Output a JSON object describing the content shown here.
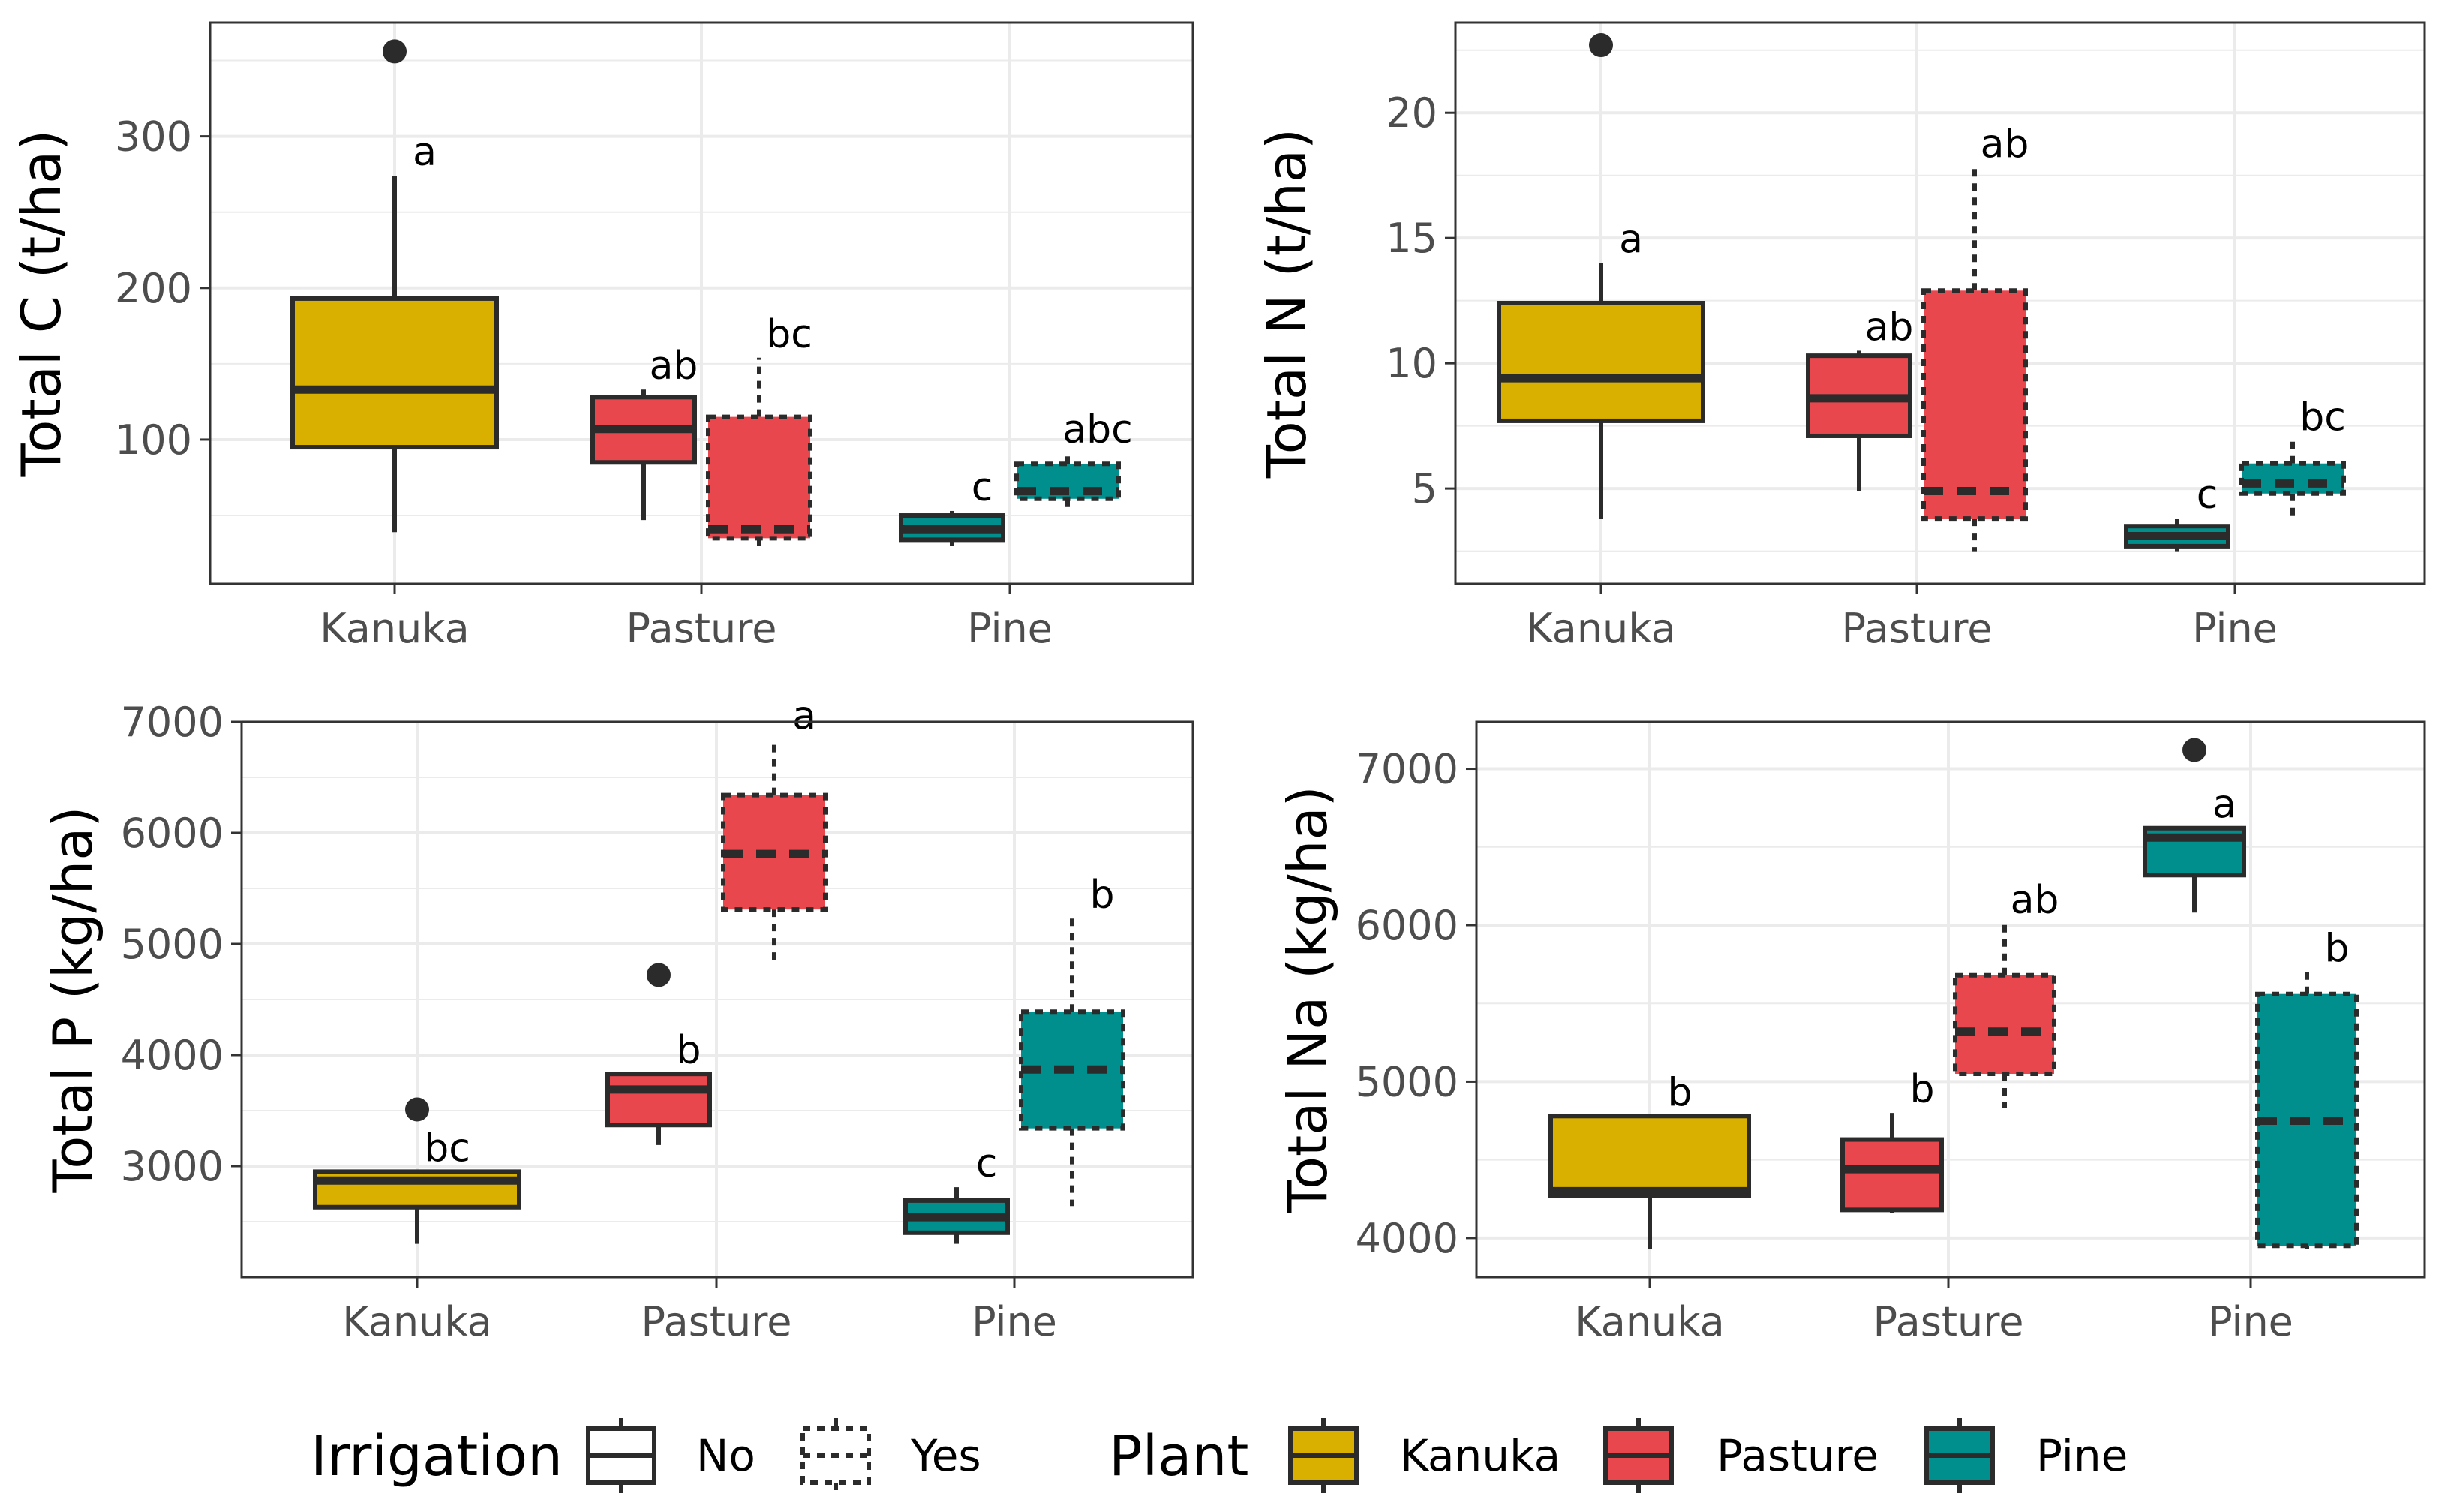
{
  "colors": {
    "Kanuka": "#D9AF00",
    "Pasture": "#E9474E",
    "Pine": "#008F8C",
    "outline": "#2b2b2b",
    "grid": "#ebebeb"
  },
  "chart_data": [
    {
      "type": "boxplot",
      "ylabel": "Total C (t/ha)",
      "categories": [
        "Kanuka",
        "Pasture",
        "Pine"
      ],
      "ylim": [
        5,
        375
      ],
      "yticks": [
        100,
        200,
        300
      ],
      "boxes": [
        {
          "plant": "Kanuka",
          "irrigation": "No",
          "min": 39,
          "q1": 95,
          "median": 133,
          "q3": 193,
          "max": 274,
          "outliers": [
            356
          ],
          "label": "a"
        },
        {
          "plant": "Pasture",
          "irrigation": "No",
          "min": 47,
          "q1": 85,
          "median": 107,
          "q3": 128,
          "max": 133,
          "outliers": [],
          "label": "ab"
        },
        {
          "plant": "Pasture",
          "irrigation": "Yes",
          "min": 28,
          "q1": 35,
          "median": 41,
          "q3": 115,
          "max": 154,
          "outliers": [],
          "label": "bc"
        },
        {
          "plant": "Pine",
          "irrigation": "No",
          "min": 30,
          "q1": 34,
          "median": 41,
          "q3": 50,
          "max": 53,
          "outliers": [],
          "label": "c"
        },
        {
          "plant": "Pine",
          "irrigation": "Yes",
          "min": 52,
          "q1": 61,
          "median": 66,
          "q3": 84,
          "max": 91,
          "outliers": [],
          "label": "abc"
        }
      ]
    },
    {
      "type": "boxplot",
      "ylabel": "Total N (t/ha)",
      "categories": [
        "Kanuka",
        "Pasture",
        "Pine"
      ],
      "ylim": [
        1.2,
        23.6
      ],
      "yticks": [
        5,
        10,
        15,
        20
      ],
      "boxes": [
        {
          "plant": "Kanuka",
          "irrigation": "No",
          "min": 3.8,
          "q1": 7.7,
          "median": 9.4,
          "q3": 12.4,
          "max": 14.0,
          "outliers": [
            22.7
          ],
          "label": "a"
        },
        {
          "plant": "Pasture",
          "irrigation": "No",
          "min": 4.9,
          "q1": 7.1,
          "median": 8.6,
          "q3": 10.3,
          "max": 10.5,
          "outliers": [],
          "label": "ab"
        },
        {
          "plant": "Pasture",
          "irrigation": "Yes",
          "min": 2.5,
          "q1": 3.8,
          "median": 4.9,
          "q3": 12.9,
          "max": 17.8,
          "outliers": [],
          "label": "ab"
        },
        {
          "plant": "Pine",
          "irrigation": "No",
          "min": 2.5,
          "q1": 2.7,
          "median": 3.1,
          "q3": 3.5,
          "max": 3.8,
          "outliers": [],
          "label": "c"
        },
        {
          "plant": "Pine",
          "irrigation": "Yes",
          "min": 3.8,
          "q1": 4.8,
          "median": 5.2,
          "q3": 6.0,
          "max": 6.9,
          "outliers": [],
          "label": "bc"
        }
      ]
    },
    {
      "type": "boxplot",
      "ylabel": "Total P (kg/ha)",
      "categories": [
        "Kanuka",
        "Pasture",
        "Pine"
      ],
      "ylim": [
        2000,
        7000
      ],
      "yticks": [
        3000,
        4000,
        5000,
        6000,
        7000
      ],
      "boxes": [
        {
          "plant": "Kanuka",
          "irrigation": "No",
          "min": 2300,
          "q1": 2630,
          "median": 2870,
          "q3": 2950,
          "max": 2950,
          "outliers": [
            3510
          ],
          "label": "bc"
        },
        {
          "plant": "Pasture",
          "irrigation": "No",
          "min": 3190,
          "q1": 3370,
          "median": 3690,
          "q3": 3830,
          "max": 3830,
          "outliers": [
            4720
          ],
          "label": "b"
        },
        {
          "plant": "Pasture",
          "irrigation": "Yes",
          "min": 4800,
          "q1": 5310,
          "median": 5810,
          "q3": 6340,
          "max": 6840,
          "outliers": [],
          "label": "a"
        },
        {
          "plant": "Pine",
          "irrigation": "No",
          "min": 2300,
          "q1": 2400,
          "median": 2540,
          "q3": 2690,
          "max": 2810,
          "outliers": [],
          "label": "c"
        },
        {
          "plant": "Pine",
          "irrigation": "Yes",
          "min": 2640,
          "q1": 3340,
          "median": 3870,
          "q3": 4390,
          "max": 5230,
          "outliers": [],
          "label": "b"
        }
      ]
    },
    {
      "type": "boxplot",
      "ylabel": "Total Na (kg/ha)",
      "categories": [
        "Kanuka",
        "Pasture",
        "Pine"
      ],
      "ylim": [
        3750,
        7300
      ],
      "yticks": [
        4000,
        5000,
        6000,
        7000
      ],
      "boxes": [
        {
          "plant": "Kanuka",
          "irrigation": "No",
          "min": 3930,
          "q1": 4270,
          "median": 4300,
          "q3": 4780,
          "max": 4780,
          "outliers": [],
          "label": "b"
        },
        {
          "plant": "Pasture",
          "irrigation": "No",
          "min": 4160,
          "q1": 4180,
          "median": 4440,
          "q3": 4630,
          "max": 4800,
          "outliers": [],
          "label": "b"
        },
        {
          "plant": "Pasture",
          "irrigation": "Yes",
          "min": 4830,
          "q1": 5050,
          "median": 5320,
          "q3": 5680,
          "max": 6010,
          "outliers": [],
          "label": "ab"
        },
        {
          "plant": "Pine",
          "irrigation": "No",
          "min": 6080,
          "q1": 6320,
          "median": 6560,
          "q3": 6620,
          "max": 6620,
          "outliers": [
            7120
          ],
          "label": "a"
        },
        {
          "plant": "Pine",
          "irrigation": "Yes",
          "min": 3930,
          "q1": 3950,
          "median": 4750,
          "q3": 5560,
          "max": 5700,
          "outliers": [],
          "label": "b"
        }
      ]
    }
  ],
  "legend": {
    "irrigation_title": "Irrigation",
    "irrigation_items": [
      {
        "label": "No",
        "style": "solid"
      },
      {
        "label": "Yes",
        "style": "dashed"
      }
    ],
    "plant_title": "Plant",
    "plant_items": [
      {
        "label": "Kanuka"
      },
      {
        "label": "Pasture"
      },
      {
        "label": "Pine"
      }
    ]
  }
}
